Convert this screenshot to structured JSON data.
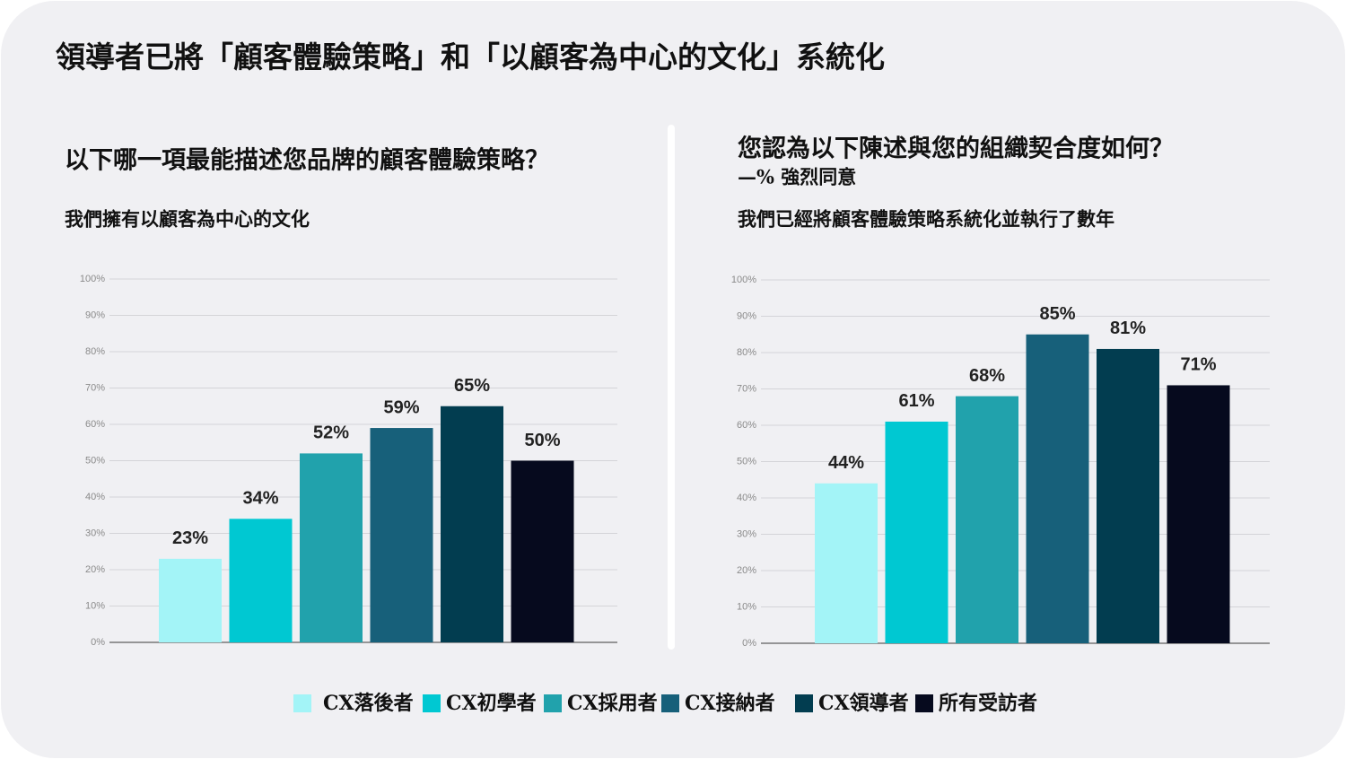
{
  "title": "領導者已將「顧客體驗策略」和「以顧客為中心的文化」系統化",
  "chart_data": [
    {
      "type": "bar",
      "title": "以下哪一項最能描述您品牌的顧客體驗策略？",
      "caption": "我們擁有以顧客為中心的文化",
      "values": [
        23,
        34,
        52,
        59,
        65,
        50
      ],
      "value_labels": [
        "23%",
        "34%",
        "52%",
        "59%",
        "65%",
        "50%"
      ],
      "ylim": [
        0,
        100
      ],
      "yticks": [
        {
          "value": 0,
          "label": "0%"
        },
        {
          "value": 10,
          "label": "10%"
        },
        {
          "value": 20,
          "label": "20%"
        },
        {
          "value": 30,
          "label": "30%"
        },
        {
          "value": 40,
          "label": "40%"
        },
        {
          "value": 50,
          "label": "50%"
        },
        {
          "value": 60,
          "label": "60%"
        },
        {
          "value": 70,
          "label": "70%"
        },
        {
          "value": 80,
          "label": "80%"
        },
        {
          "value": 90,
          "label": "90%"
        },
        {
          "value": 100,
          "label": "100%"
        }
      ],
      "grid": true
    },
    {
      "type": "bar",
      "title": "您認為以下陳述與您的組織契合度如何？",
      "subtitle": "—% 強烈同意",
      "caption": "我們已經將顧客體驗策略系統化並執行了數年",
      "values": [
        44,
        61,
        68,
        85,
        81,
        71
      ],
      "value_labels": [
        "44%",
        "61%",
        "68%",
        "85%",
        "81%",
        "71%"
      ],
      "ylim": [
        0,
        100
      ],
      "yticks": [
        {
          "value": 0,
          "label": "0%"
        },
        {
          "value": 10,
          "label": "10%"
        },
        {
          "value": 20,
          "label": "20%"
        },
        {
          "value": 30,
          "label": "30%"
        },
        {
          "value": 40,
          "label": "40%"
        },
        {
          "value": 50,
          "label": "50%"
        },
        {
          "value": 60,
          "label": "60%"
        },
        {
          "value": 70,
          "label": "70%"
        },
        {
          "value": 80,
          "label": "80%"
        },
        {
          "value": 90,
          "label": "90%"
        },
        {
          "value": 100,
          "label": "100%"
        }
      ],
      "grid": true
    }
  ],
  "legend": {
    "items": [
      {
        "name": "CX落後者",
        "color": "#a3f4f7"
      },
      {
        "name": "CX初學者",
        "color": "#00c8d2"
      },
      {
        "name": "CX採用者",
        "color": "#21a2ac"
      },
      {
        "name": "CX接納者",
        "color": "#17607a"
      },
      {
        "name": "CX領導者",
        "color": "#023d50"
      },
      {
        "name": "所有受訪者",
        "color": "#060a1e"
      }
    ]
  }
}
